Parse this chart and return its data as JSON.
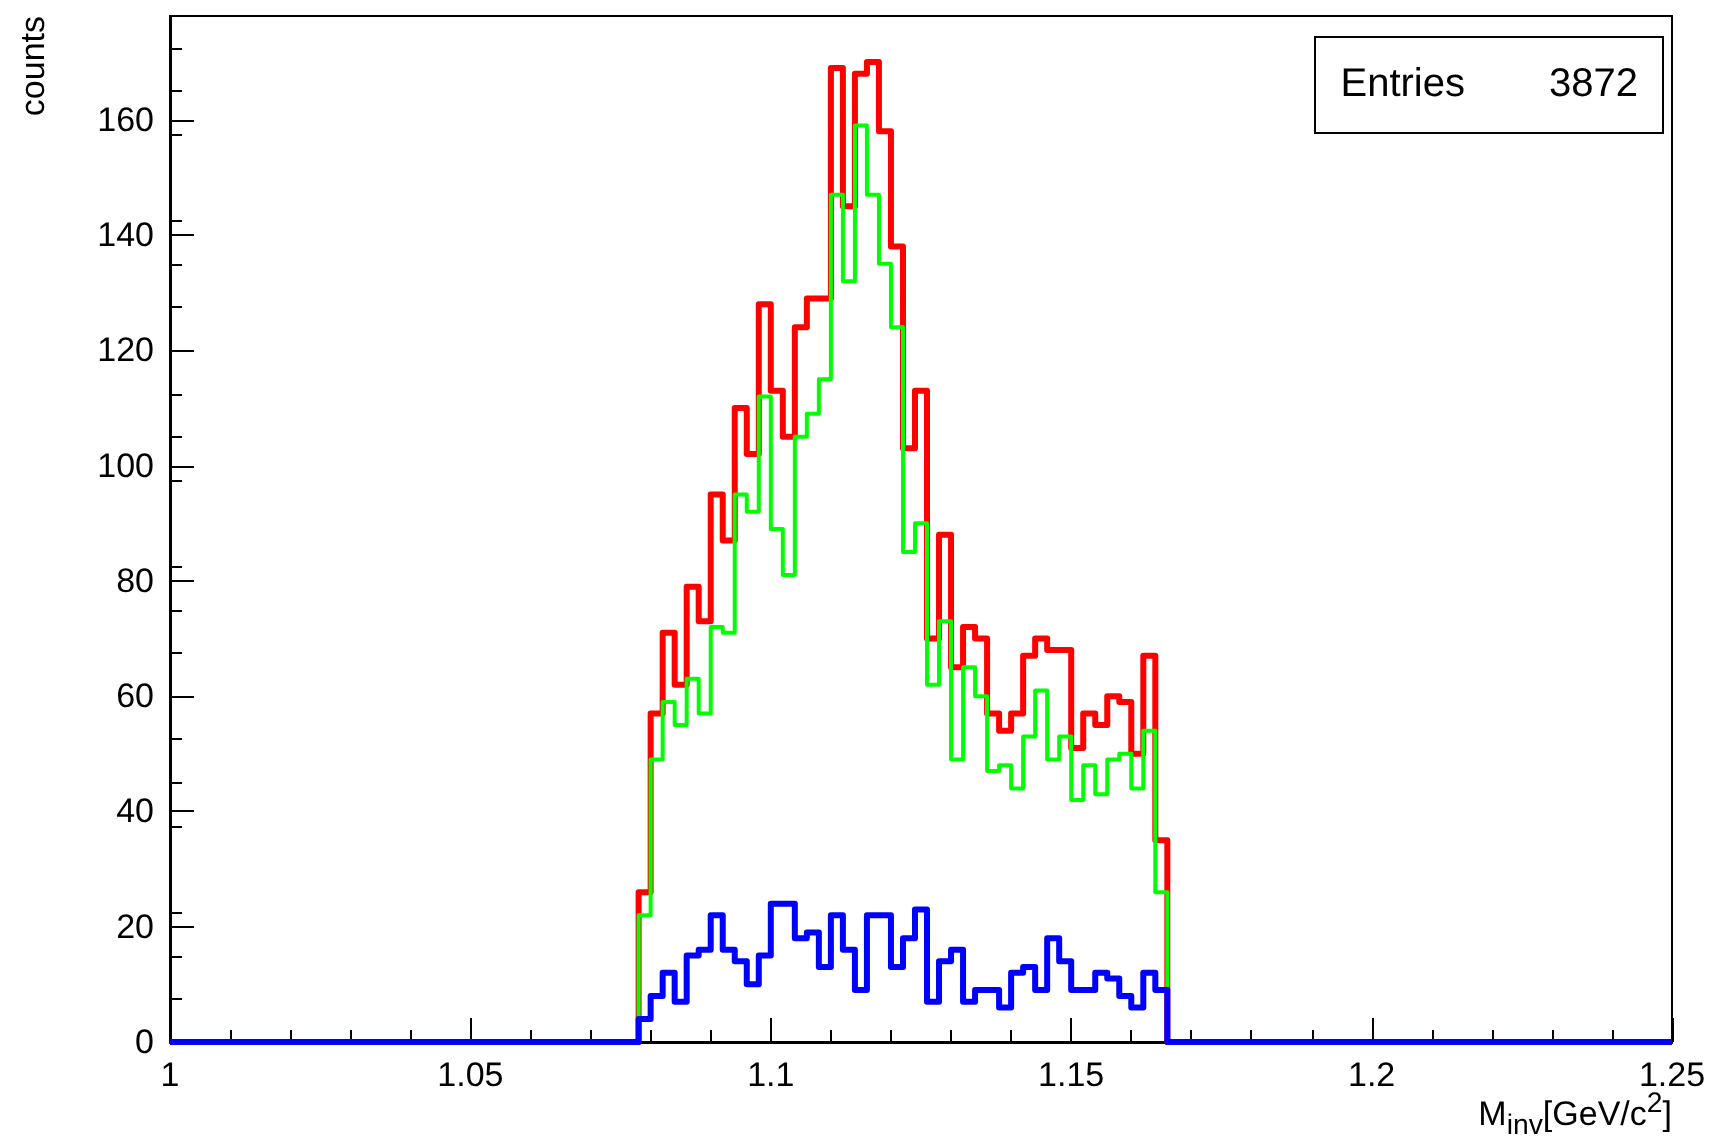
{
  "chart_data": {
    "type": "histogram",
    "xlabel": "M$_{inv}$[GeV/c$^{2}$]",
    "ylabel": "counts",
    "annotations": [
      "Entries 3872"
    ],
    "bins": [
      1,
      1.078,
      1.08,
      1.082,
      1.084,
      1.086,
      1.088,
      1.09,
      1.092,
      1.094,
      1.096,
      1.098,
      1.1,
      1.102,
      1.104,
      1.106,
      1.108,
      1.11,
      1.112,
      1.114,
      1.116,
      1.118,
      1.12,
      1.122,
      1.124,
      1.126,
      1.128,
      1.13,
      1.132,
      1.134,
      1.136,
      1.138,
      1.14,
      1.142,
      1.144,
      1.146,
      1.148,
      1.15,
      1.152,
      1.154,
      1.156,
      1.158,
      1.16,
      1.162,
      1.164,
      1.166,
      1.25
    ],
    "series": [
      {
        "color": "#ff0000",
        "values": [
          0,
          26,
          57,
          71,
          62,
          79,
          73,
          95,
          87,
          110,
          102,
          128,
          113,
          105,
          124,
          129,
          129,
          169,
          145,
          168,
          170,
          158,
          138,
          103,
          113,
          70,
          88,
          65,
          72,
          70,
          57,
          54,
          57,
          67,
          70,
          68,
          68,
          51,
          57,
          55,
          60,
          59,
          50,
          67,
          35,
          0
        ]
      },
      {
        "color": "#00ff00",
        "values": [
          0,
          22,
          49,
          59,
          55,
          63,
          57,
          72,
          71,
          95,
          92,
          112,
          89,
          81,
          105,
          109,
          115,
          147,
          132,
          159,
          147,
          135,
          124,
          85,
          90,
          62,
          73,
          49,
          65,
          60,
          47,
          48,
          44,
          53,
          61,
          49,
          53,
          42,
          48,
          43,
          49,
          50,
          44,
          54,
          26,
          0
        ]
      },
      {
        "color": "#0000ff",
        "values": [
          0,
          4,
          8,
          12,
          7,
          15,
          16,
          22,
          16,
          14,
          10,
          15,
          24,
          24,
          18,
          19,
          13,
          22,
          16,
          9,
          22,
          22,
          13,
          18,
          23,
          7,
          14,
          16,
          7,
          9,
          9,
          6,
          12,
          13,
          9,
          18,
          14,
          9,
          9,
          12,
          11,
          8,
          6,
          12,
          9,
          0
        ]
      }
    ],
    "xlim": [
      1,
      1.25
    ],
    "xticks": [
      1,
      1.05,
      1.1,
      1.15,
      1.2,
      1.25
    ],
    "ylim": [
      0,
      178
    ],
    "yticks": [
      0,
      20,
      40,
      60,
      80,
      100,
      120,
      140,
      160
    ],
    "grid": false
  }
}
